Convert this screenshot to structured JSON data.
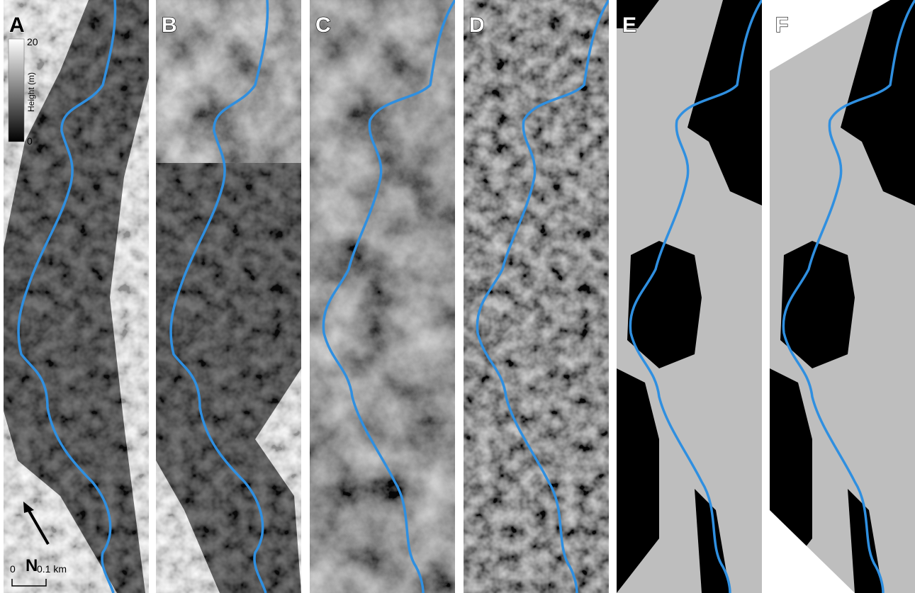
{
  "panels": [
    {
      "label": "A"
    },
    {
      "label": "B"
    },
    {
      "label": "C"
    },
    {
      "label": "D"
    },
    {
      "label": "E"
    },
    {
      "label": "F"
    }
  ],
  "legend": {
    "max": "20",
    "min": "0",
    "title": "Height (m)"
  },
  "north": "N",
  "scale": {
    "start": "0",
    "end": "0.1 km"
  }
}
